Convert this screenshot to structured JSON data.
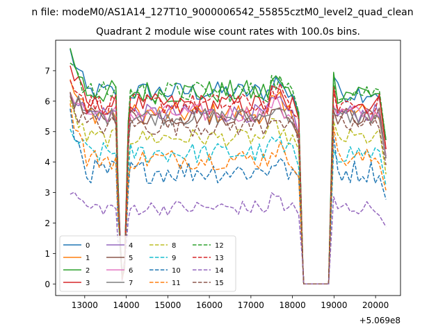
{
  "figure": {
    "suptitle": "n file: modeM0/AS1A14_127T10_9000006542_55855cztM0_level2_quad_clean",
    "offset_label": "+5.069e8"
  },
  "colors": {
    "palette": [
      "#1f77b4",
      "#ff7f0e",
      "#2ca02c",
      "#d62728",
      "#9467bd",
      "#8c564b",
      "#e377c2",
      "#7f7f7f",
      "#bcbd22",
      "#17becf"
    ]
  },
  "chart_data": {
    "type": "line",
    "title": "Quadrant 2 module wise count rates with 100.0s bins.",
    "xlabel": "",
    "ylabel": "",
    "x_offset": 506900000,
    "xlim": [
      12300,
      20600
    ],
    "ylim": [
      -0.38,
      8.0
    ],
    "xticks": [
      13000,
      14000,
      15000,
      16000,
      17000,
      18000,
      19000,
      20000
    ],
    "yticks": [
      0,
      1,
      2,
      3,
      4,
      5,
      6,
      7
    ],
    "grid": false,
    "legend": {
      "placement": "lower-left",
      "columns": 4
    },
    "x_segments": [
      [
        12650,
        18250
      ],
      [
        18270,
        18870
      ],
      [
        18990,
        20250
      ]
    ],
    "bin_width": 100,
    "dip": {
      "x": 13900,
      "low": 0.1
    },
    "series": [
      {
        "name": "0",
        "level": 6.3,
        "start": 7.6,
        "amp": 0.35,
        "style": "solid"
      },
      {
        "name": "1",
        "level": 5.6,
        "start": 6.5,
        "amp": 0.35,
        "style": "solid"
      },
      {
        "name": "2",
        "level": 6.3,
        "start": 7.6,
        "amp": 0.4,
        "style": "solid"
      },
      {
        "name": "3",
        "level": 5.9,
        "start": 7.1,
        "amp": 0.35,
        "style": "solid"
      },
      {
        "name": "4",
        "level": 5.6,
        "start": 6.4,
        "amp": 0.3,
        "style": "solid"
      },
      {
        "name": "5",
        "level": 5.5,
        "start": 6.2,
        "amp": 0.3,
        "style": "solid"
      },
      {
        "name": "6",
        "level": 5.6,
        "start": 6.4,
        "amp": 0.3,
        "style": "solid"
      },
      {
        "name": "7",
        "level": 5.5,
        "start": 6.3,
        "amp": 0.3,
        "style": "solid"
      },
      {
        "name": "8",
        "level": 4.8,
        "start": 5.8,
        "amp": 0.3,
        "style": "dashed"
      },
      {
        "name": "9",
        "level": 4.3,
        "start": 5.0,
        "amp": 0.35,
        "style": "dashed"
      },
      {
        "name": "10",
        "level": 3.7,
        "start": 5.4,
        "amp": 0.4,
        "style": "dashed"
      },
      {
        "name": "11",
        "level": 4.1,
        "start": 5.8,
        "amp": 0.35,
        "style": "dashed"
      },
      {
        "name": "12",
        "level": 6.3,
        "start": 7.5,
        "amp": 0.35,
        "style": "dashed"
      },
      {
        "name": "13",
        "level": 5.9,
        "start": 6.9,
        "amp": 0.35,
        "style": "dashed"
      },
      {
        "name": "14",
        "level": 2.5,
        "start": 3.1,
        "amp": 0.25,
        "style": "dashed"
      },
      {
        "name": "15",
        "level": 5.2,
        "start": 6.0,
        "amp": 0.35,
        "style": "dashed"
      }
    ]
  }
}
